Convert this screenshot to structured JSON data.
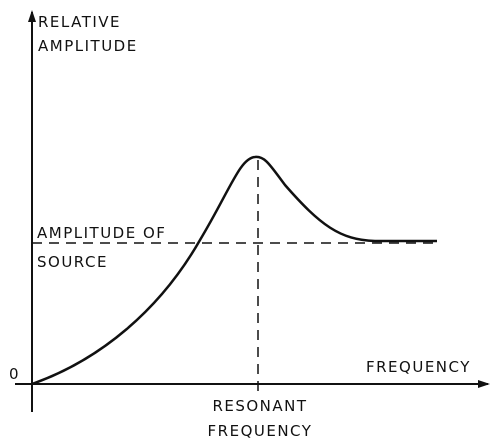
{
  "y_axis_label": [
    "RELATIVE",
    "AMPLITUDE"
  ],
  "source_label": [
    "AMPLITUDE OF",
    "SOURCE"
  ],
  "origin_label": "0",
  "x_axis_label": "FREQUENCY",
  "resonance_label": [
    "RESONANT",
    "FREQUENCY"
  ]
}
